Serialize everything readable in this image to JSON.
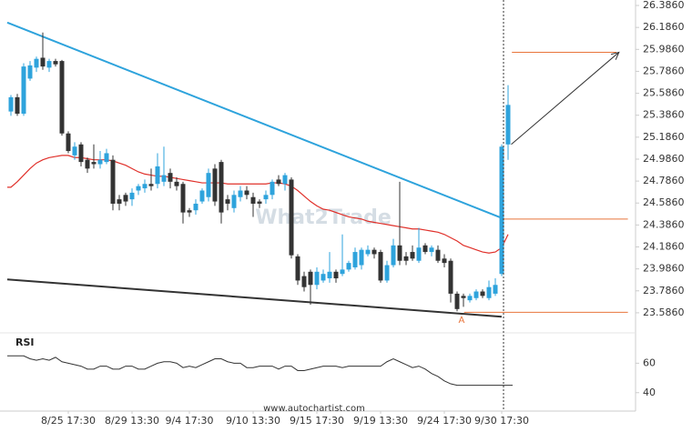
{
  "chart_data": {
    "type": "candlestick",
    "categories": [
      null,
      null,
      null,
      null,
      null,
      null,
      null,
      null,
      null,
      "8/25 17:30",
      null,
      null,
      null,
      null,
      null,
      null,
      null,
      null,
      null,
      "8/29 13:30",
      null,
      null,
      null,
      null,
      null,
      null,
      null,
      null,
      "9/4 17:30",
      null,
      null,
      null,
      null,
      null,
      null,
      null,
      null,
      null,
      "9/10 13:30",
      null,
      null,
      null,
      null,
      null,
      null,
      null,
      null,
      null,
      "9/15 17:30",
      null,
      null,
      null,
      null,
      null,
      null,
      null,
      null,
      null,
      "9/19 13:30",
      null,
      null,
      null,
      null,
      null,
      null,
      null,
      null,
      null,
      "9/24 17:30",
      null,
      null,
      null,
      null,
      null,
      null,
      null,
      null,
      "9/30 17:30",
      null
    ],
    "open": [
      25.42,
      25.55,
      25.4,
      25.72,
      25.82,
      25.91,
      25.82,
      25.88,
      25.88,
      25.22,
      25.02,
      25.12,
      24.98,
      24.96,
      24.94,
      24.96,
      24.98,
      24.62,
      24.66,
      24.62,
      24.7,
      24.72,
      24.76,
      24.76,
      24.78,
      24.86,
      24.78,
      24.76,
      24.52,
      24.52,
      24.6,
      24.64,
      24.9,
      24.96,
      24.62,
      24.54,
      24.64,
      24.7,
      24.64,
      24.6,
      24.62,
      24.66,
      24.8,
      24.76,
      24.8,
      24.1,
      23.92,
      23.96,
      23.84,
      23.88,
      23.9,
      23.96,
      23.94,
      23.98,
      24.0,
      24.02,
      24.12,
      24.16,
      24.14,
      23.88,
      24.02,
      24.2,
      24.1,
      24.14,
      24.06,
      24.2,
      24.14,
      24.16,
      24.08,
      24.06,
      23.76,
      23.74,
      23.7,
      23.72,
      23.78,
      23.72,
      23.76,
      23.94,
      25.12
    ],
    "high": [
      25.57,
      25.58,
      25.86,
      25.88,
      25.92,
      26.14,
      25.9,
      25.9,
      25.89,
      25.24,
      25.14,
      25.14,
      25.0,
      25.12,
      25.06,
      25.08,
      25.02,
      24.66,
      24.68,
      24.72,
      24.76,
      24.8,
      24.9,
      25.04,
      25.1,
      24.9,
      24.82,
      24.78,
      24.54,
      24.62,
      24.72,
      24.9,
      24.94,
      24.98,
      24.66,
      24.7,
      24.74,
      24.74,
      24.68,
      24.62,
      24.7,
      24.8,
      24.84,
      24.86,
      24.82,
      24.12,
      23.96,
      23.98,
      24.0,
      23.98,
      24.14,
      23.98,
      24.3,
      24.06,
      24.18,
      24.18,
      24.2,
      24.18,
      24.16,
      24.06,
      24.26,
      24.78,
      24.14,
      24.2,
      24.36,
      24.22,
      24.2,
      24.2,
      24.12,
      24.08,
      23.78,
      23.76,
      23.76,
      23.8,
      23.8,
      23.88,
      23.9,
      25.12,
      25.66
    ],
    "low": [
      25.38,
      25.38,
      25.38,
      25.7,
      25.78,
      25.8,
      25.78,
      25.83,
      25.2,
      25.04,
      24.98,
      24.92,
      24.86,
      24.9,
      24.9,
      24.94,
      24.52,
      24.52,
      24.56,
      24.56,
      24.66,
      24.68,
      24.7,
      24.72,
      24.74,
      24.72,
      24.7,
      24.4,
      24.46,
      24.48,
      24.58,
      24.6,
      24.56,
      24.4,
      24.52,
      24.5,
      24.6,
      24.62,
      24.46,
      24.54,
      24.58,
      24.62,
      24.74,
      24.7,
      24.08,
      23.84,
      23.78,
      23.66,
      23.8,
      23.86,
      23.86,
      23.86,
      23.92,
      23.96,
      23.98,
      23.98,
      24.1,
      24.08,
      23.86,
      23.86,
      24.0,
      24.02,
      24.02,
      24.06,
      24.04,
      24.12,
      24.1,
      24.04,
      24.0,
      23.68,
      23.6,
      23.64,
      23.68,
      23.7,
      23.72,
      23.7,
      23.74,
      23.92,
      24.98
    ],
    "close": [
      25.55,
      25.4,
      25.83,
      25.84,
      25.9,
      25.83,
      25.88,
      25.85,
      25.22,
      25.06,
      25.1,
      24.96,
      24.9,
      24.94,
      24.98,
      25.04,
      24.58,
      24.58,
      24.6,
      24.68,
      24.74,
      24.76,
      24.74,
      24.92,
      24.84,
      24.78,
      24.74,
      24.5,
      24.5,
      24.58,
      24.7,
      24.86,
      24.6,
      24.5,
      24.58,
      24.66,
      24.7,
      24.66,
      24.58,
      24.58,
      24.66,
      24.78,
      24.76,
      24.84,
      24.11,
      23.88,
      23.82,
      23.84,
      23.96,
      23.94,
      23.96,
      23.9,
      23.98,
      24.04,
      24.14,
      24.16,
      24.16,
      24.12,
      23.88,
      24.02,
      24.2,
      24.06,
      24.06,
      24.08,
      24.18,
      24.14,
      24.18,
      24.06,
      24.04,
      23.76,
      23.62,
      23.72,
      23.74,
      23.78,
      23.74,
      23.82,
      23.84,
      25.1,
      25.48
    ],
    "up_color": "#2ea3dc",
    "down_color": "#333333",
    "ma": {
      "color": "#e0302a",
      "values": [
        24.73,
        24.78,
        24.84,
        24.9,
        24.95,
        24.98,
        25.0,
        25.01,
        25.02,
        25.02,
        25.0,
        25.0,
        24.99,
        24.98,
        24.98,
        24.98,
        24.97,
        24.95,
        24.93,
        24.9,
        24.87,
        24.85,
        24.84,
        24.83,
        24.83,
        24.82,
        24.81,
        24.8,
        24.79,
        24.78,
        24.77,
        24.77,
        24.77,
        24.77,
        24.76,
        24.76,
        24.76,
        24.76,
        24.76,
        24.76,
        24.76,
        24.77,
        24.77,
        24.76,
        24.74,
        24.7,
        24.65,
        24.6,
        24.56,
        24.53,
        24.52,
        24.5,
        24.48,
        24.46,
        24.45,
        24.44,
        24.42,
        24.41,
        24.4,
        24.39,
        24.38,
        24.37,
        24.36,
        24.35,
        24.35,
        24.34,
        24.33,
        24.32,
        24.3,
        24.27,
        24.24,
        24.2,
        24.18,
        24.16,
        24.14,
        24.13,
        24.14,
        24.18,
        24.3
      ]
    },
    "ylim": [
      23.403,
      26.436
    ],
    "yticks": [
      {
        "value": 26.386,
        "label": "26.3860"
      },
      {
        "value": 26.186,
        "label": "26.1860"
      },
      {
        "value": 25.986,
        "label": "25.9860"
      },
      {
        "value": 25.786,
        "label": "25.7860"
      },
      {
        "value": 25.586,
        "label": "25.5860"
      },
      {
        "value": 25.386,
        "label": "25.3860"
      },
      {
        "value": 25.186,
        "label": "25.1860"
      },
      {
        "value": 24.986,
        "label": "24.9860"
      },
      {
        "value": 24.786,
        "label": "24.7860"
      },
      {
        "value": 24.586,
        "label": "24.5860"
      },
      {
        "value": 24.386,
        "label": "24.3860"
      },
      {
        "value": 24.186,
        "label": "24.1860"
      },
      {
        "value": 23.986,
        "label": "23.9860"
      },
      {
        "value": 23.786,
        "label": "23.7860"
      },
      {
        "value": 23.586,
        "label": "23.5860"
      }
    ],
    "trend_lines": [
      {
        "x": [
          0,
          77
        ],
        "y": [
          26.23,
          24.45
        ],
        "color": "#2ea3dc"
      },
      {
        "x": [
          0,
          77
        ],
        "y": [
          23.89,
          23.55
        ],
        "color": "#333333"
      }
    ],
    "levels": [
      {
        "value": 25.96,
        "from": 78.6,
        "to": 95
      },
      {
        "value": 24.44,
        "from": 77.3,
        "to": 96.8
      },
      {
        "value": 23.59,
        "from": 71.1,
        "to": 96.8
      }
    ],
    "level_color": "#e8743b",
    "arrow": {
      "x": [
        78.5,
        95.4
      ],
      "y": [
        25.12,
        25.96
      ],
      "color": "#333333"
    },
    "point_label": {
      "text": "A",
      "x": 70.7,
      "y": 23.52
    },
    "watermark": "What2Trade",
    "source": "www.autochartist.com",
    "rsi": {
      "label": "RSI",
      "color": "#333333",
      "ylim": [
        27.5,
        80.6
      ],
      "yticks": [
        60,
        40
      ],
      "values": [
        65,
        65,
        65,
        63,
        62,
        63,
        62,
        64,
        61,
        60,
        59,
        58,
        56,
        56,
        58,
        58,
        56,
        56,
        58,
        58,
        56,
        56,
        58,
        60,
        61,
        61,
        60,
        57,
        58,
        57,
        59,
        61,
        63,
        63,
        61,
        60,
        60,
        57,
        57,
        58,
        58,
        58,
        56,
        58,
        58,
        55,
        55,
        56,
        57,
        58,
        58,
        58,
        57,
        58,
        58,
        58,
        58,
        58,
        58,
        61,
        63,
        61,
        59,
        57,
        58,
        56,
        53,
        51,
        48,
        46,
        45,
        45,
        45,
        45,
        45,
        45,
        45,
        45,
        45
      ]
    }
  }
}
